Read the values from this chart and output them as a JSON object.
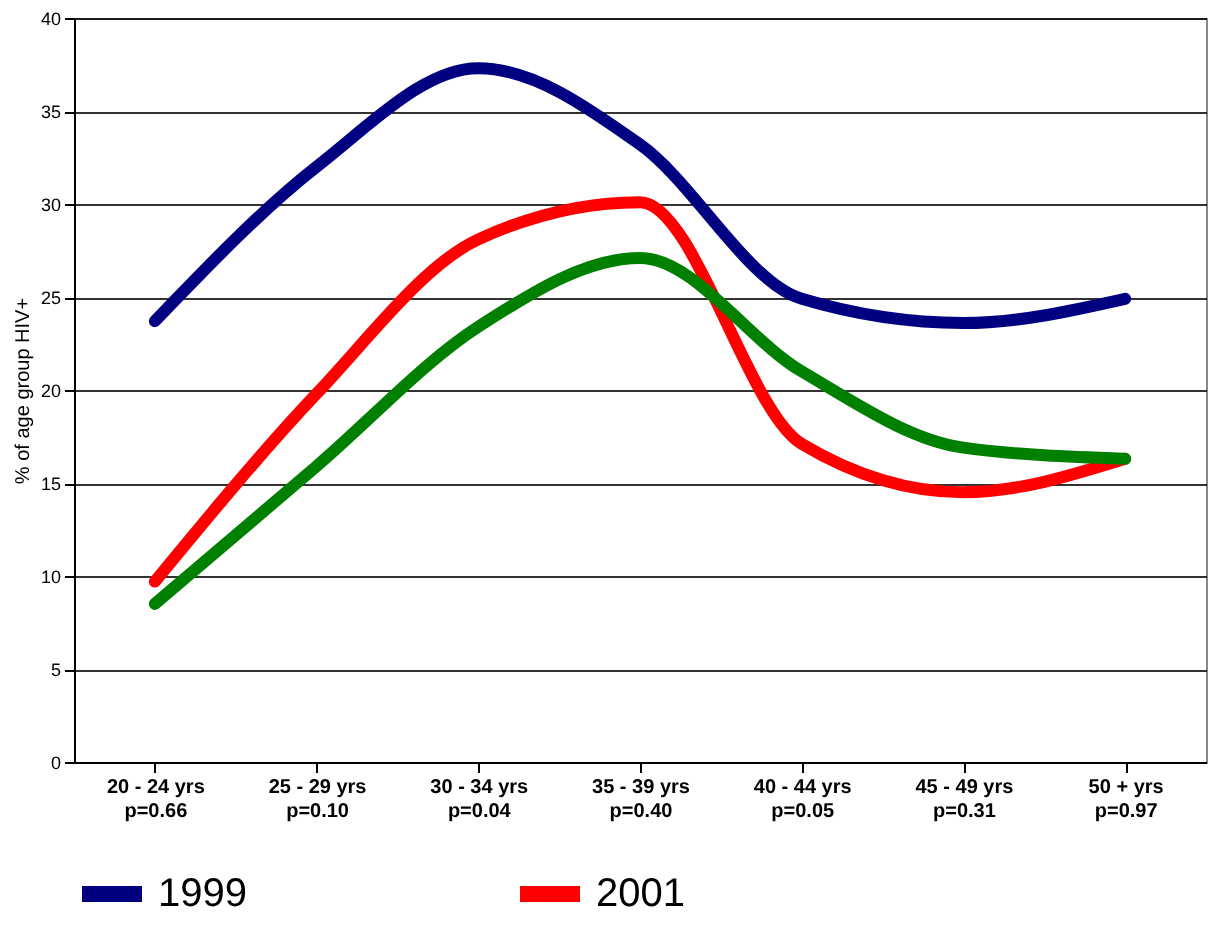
{
  "chart_data": {
    "type": "line",
    "ylabel": "% of age group HIV+",
    "categories": [
      "20 - 24  yrs\np=0.66",
      "25 - 29 yrs\np=0.10",
      "30 - 34 yrs\np=0.04",
      "35 - 39 yrs\np=0.40",
      "40 - 44  yrs\np=0.05",
      "45 - 49 yrs\np=0.31",
      "50 + yrs\np=0.97"
    ],
    "series": [
      {
        "name": "1999",
        "color": "#000080",
        "values": [
          23.7,
          32,
          37.3,
          33.2,
          24.9,
          23.6,
          24.9
        ]
      },
      {
        "name": "2001",
        "color": "#ff0000",
        "values": [
          9.7,
          19.8,
          28.1,
          30.1,
          17.1,
          14.5,
          16.3
        ]
      },
      {
        "color": "#008000",
        "values": [
          8.5,
          15.9,
          23.4,
          27.1,
          21.0,
          16.9,
          16.3
        ]
      }
    ],
    "ylim": [
      0,
      40
    ],
    "yticks": [
      0,
      5,
      10,
      15,
      20,
      25,
      30,
      35,
      40
    ],
    "grid": "y",
    "legend": "bottom",
    "marker": "none",
    "line_style": "solid"
  }
}
